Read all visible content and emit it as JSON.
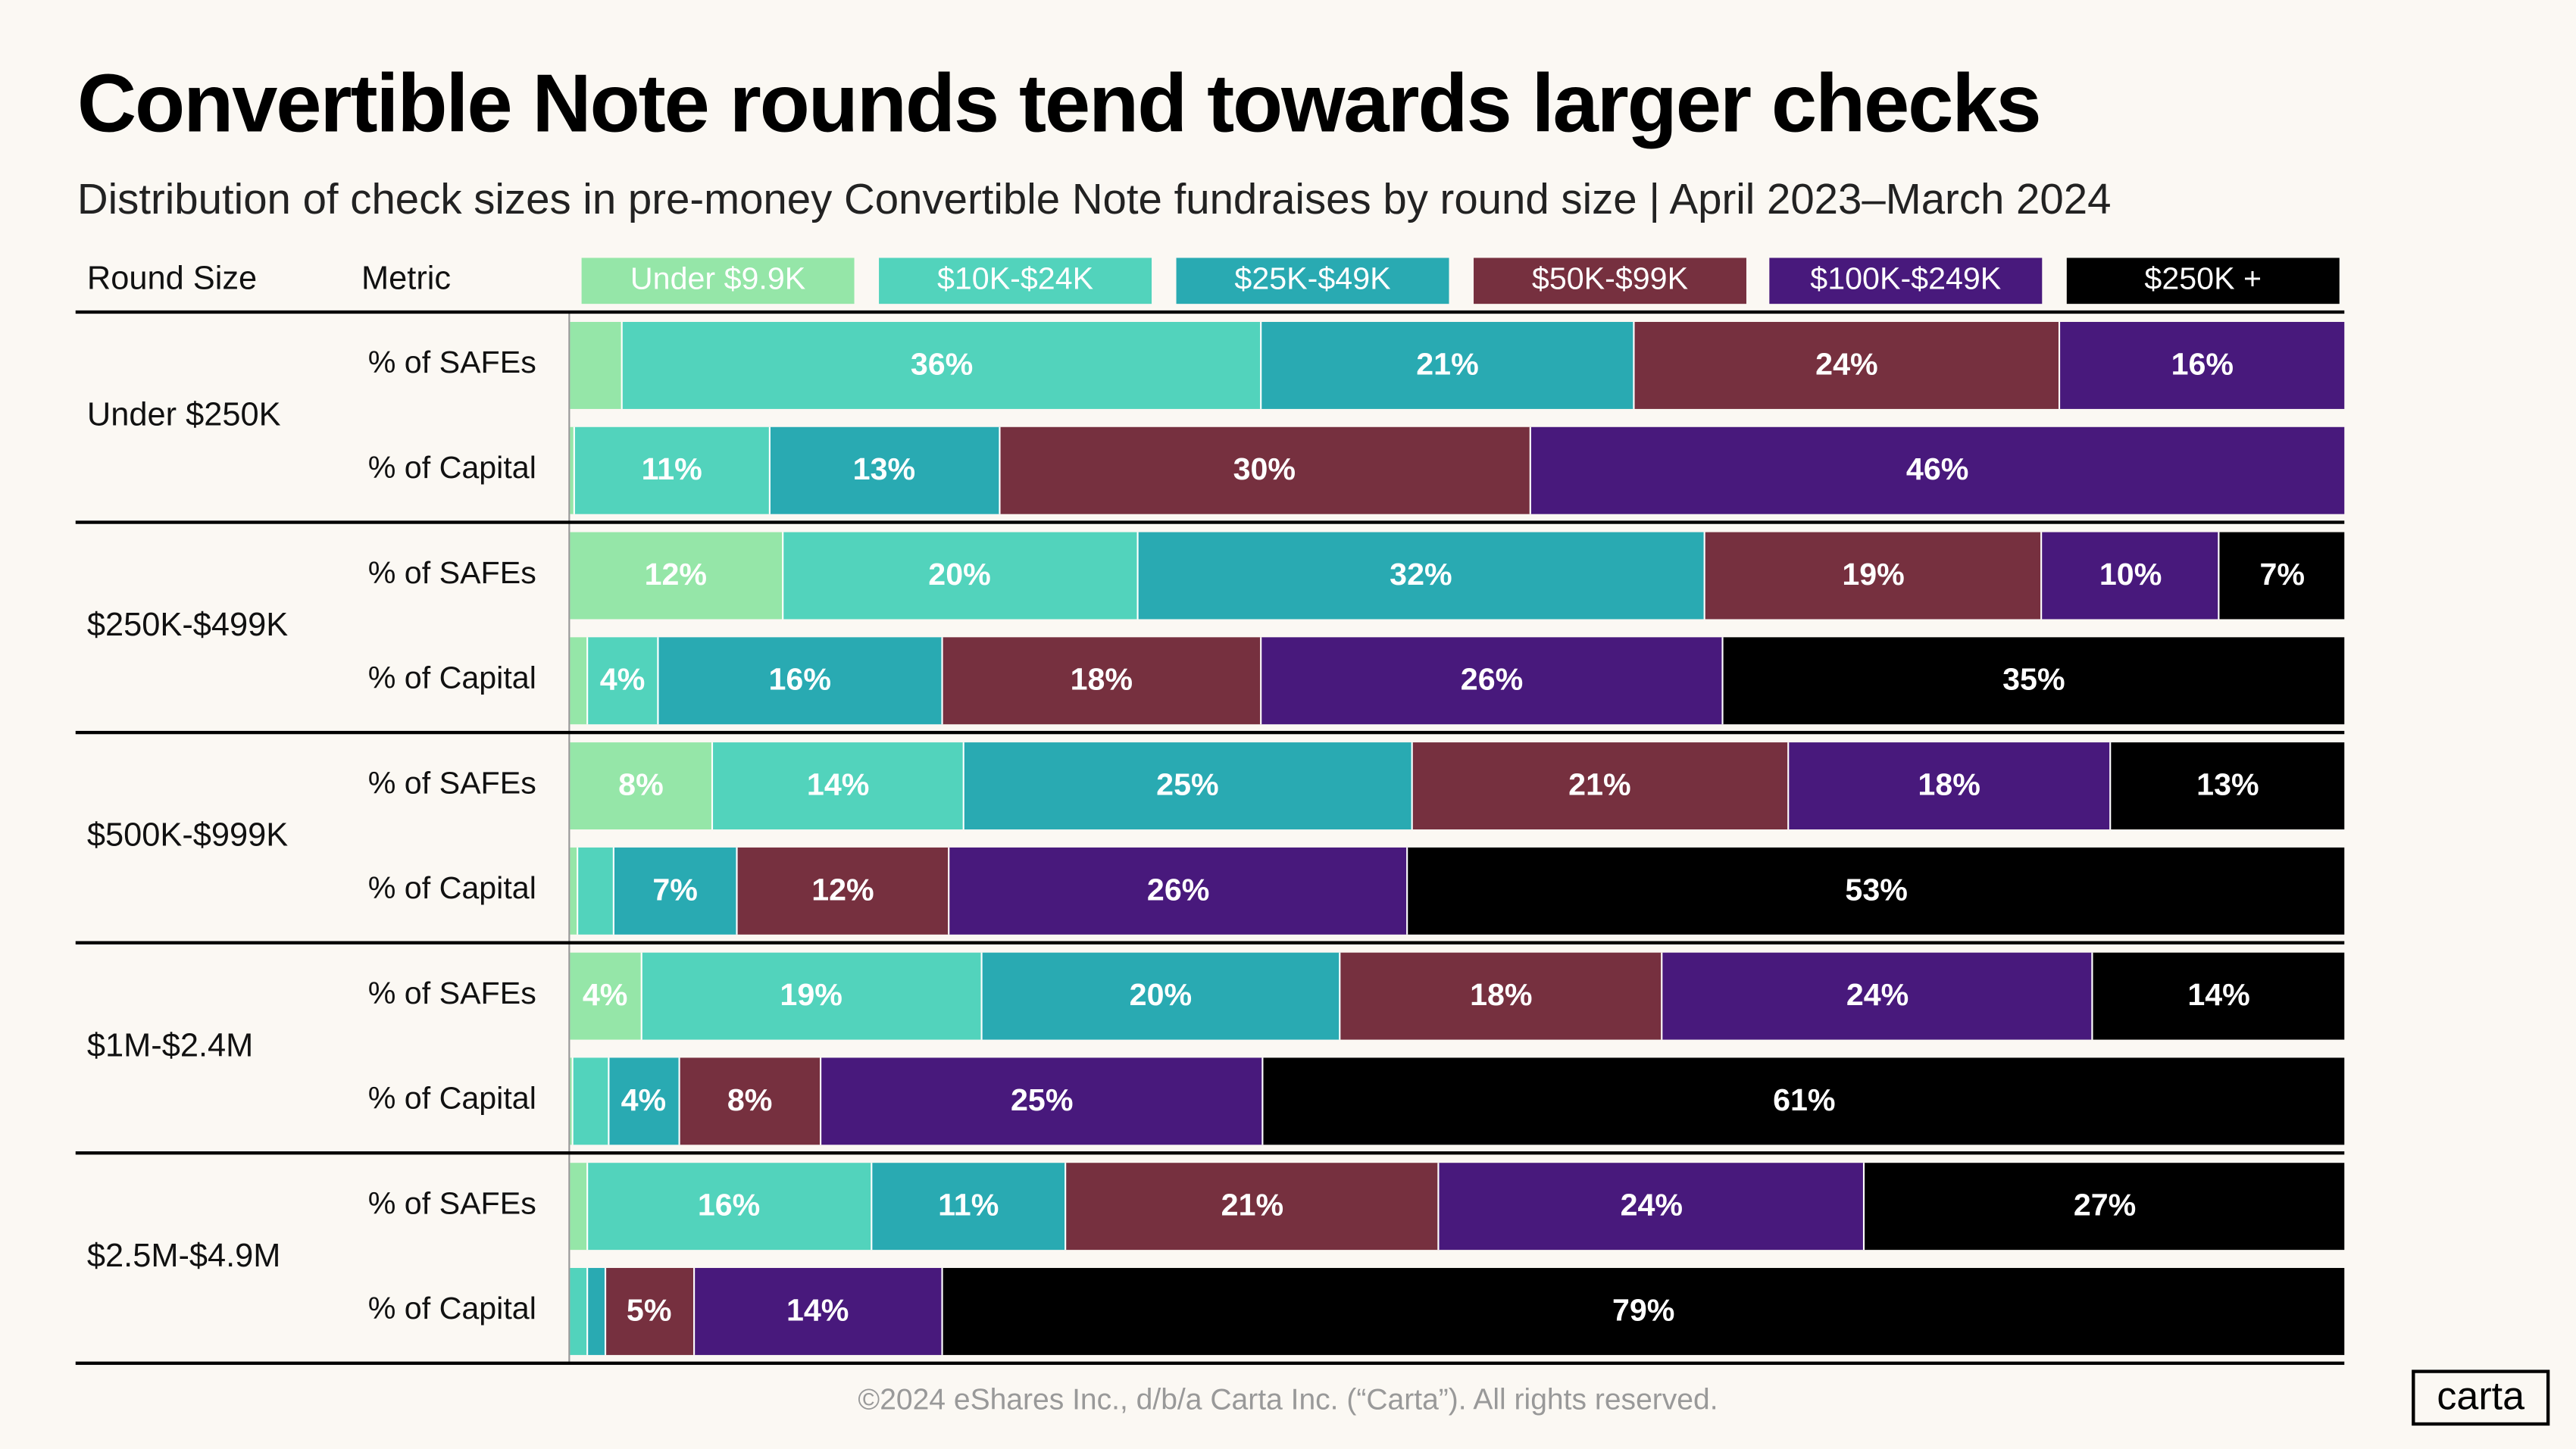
{
  "title": "Convertible Note rounds tend towards larger checks",
  "subtitle": "Distribution of check sizes in pre-money Convertible Note fundraises by round size | April 2023–March 2024",
  "header": {
    "round_size": "Round Size",
    "metric": "Metric"
  },
  "footer": "©2024 eShares Inc., d/b/a Carta Inc. (“Carta”). All rights reserved.",
  "logo": "carta",
  "chart_data": {
    "type": "bar",
    "orientation": "horizontal-stacked-100",
    "title": "Convertible Note rounds tend towards larger checks",
    "legend_position": "top",
    "series": [
      {
        "name": "Under $9.9K",
        "color": "#95E6A8"
      },
      {
        "name": "$10K-$24K",
        "color": "#52D3BC"
      },
      {
        "name": "$25K-$49K",
        "color": "#29AAB2"
      },
      {
        "name": "$50K-$99K",
        "color": "#76303F"
      },
      {
        "name": "$100K-$249K",
        "color": "#48197C"
      },
      {
        "name": "$250K +",
        "color": "#000000"
      }
    ],
    "groups": [
      {
        "round_size": "Under $250K",
        "rows": [
          {
            "metric": "% of SAFEs",
            "values": [
              3,
              36,
              21,
              24,
              16,
              0
            ],
            "labels": [
              null,
              "36%",
              "21%",
              "24%",
              "16%",
              null
            ]
          },
          {
            "metric": "% of Capital",
            "values": [
              0.3,
              11,
              13,
              30,
              46,
              0
            ],
            "labels": [
              null,
              "11%",
              "13%",
              "30%",
              "46%",
              null
            ]
          }
        ]
      },
      {
        "round_size": "$250K-$499K",
        "rows": [
          {
            "metric": "% of SAFEs",
            "values": [
              12,
              20,
              32,
              19,
              10,
              7
            ],
            "labels": [
              "12%",
              "20%",
              "32%",
              "19%",
              "10%",
              "7%"
            ]
          },
          {
            "metric": "% of Capital",
            "values": [
              1,
              4,
              16,
              18,
              26,
              35
            ],
            "labels": [
              null,
              "4%",
              "16%",
              "18%",
              "26%",
              "35%"
            ]
          }
        ]
      },
      {
        "round_size": "$500K-$999K",
        "rows": [
          {
            "metric": "% of SAFEs",
            "values": [
              8,
              14,
              25,
              21,
              18,
              13
            ],
            "labels": [
              "8%",
              "14%",
              "25%",
              "21%",
              "18%",
              "13%"
            ]
          },
          {
            "metric": "% of Capital",
            "values": [
              0.5,
              2,
              7,
              12,
              26,
              53
            ],
            "labels": [
              null,
              null,
              "7%",
              "12%",
              "26%",
              "53%"
            ]
          }
        ]
      },
      {
        "round_size": "$1M-$2.4M",
        "rows": [
          {
            "metric": "% of SAFEs",
            "values": [
              4,
              19,
              20,
              18,
              24,
              14
            ],
            "labels": [
              "4%",
              "19%",
              "20%",
              "18%",
              "24%",
              "14%"
            ]
          },
          {
            "metric": "% of Capital",
            "values": [
              0.2,
              2,
              4,
              8,
              25,
              61
            ],
            "labels": [
              null,
              null,
              "4%",
              "8%",
              "25%",
              "61%"
            ]
          }
        ]
      },
      {
        "round_size": "$2.5M-$4.9M",
        "rows": [
          {
            "metric": "% of SAFEs",
            "values": [
              1,
              16,
              11,
              21,
              24,
              27
            ],
            "labels": [
              null,
              "16%",
              "11%",
              "21%",
              "24%",
              "27%"
            ]
          },
          {
            "metric": "% of Capital",
            "values": [
              0,
              1,
              1,
              5,
              14,
              79
            ],
            "labels": [
              null,
              null,
              null,
              "5%",
              "14%",
              "79%"
            ]
          }
        ]
      }
    ]
  }
}
